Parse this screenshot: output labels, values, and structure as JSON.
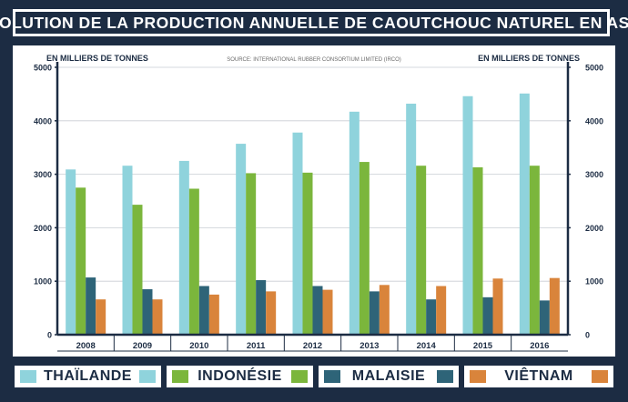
{
  "title": "ÉVOLUTION DE LA PRODUCTION ANNUELLE DE CAOUTCHOUC NATUREL EN ASIE",
  "unit_left": "EN MILLIERS DE TONNES",
  "unit_right": "EN MILLIERS DE TONNES",
  "source": "SOURCE: INTERNATIONAL RUBBER CONSORTIUM LIMITED (IRCO)",
  "colors": {
    "background": "#1c2c43",
    "thailande": "#8fd3dc",
    "indonesie": "#7bb63c",
    "malaisie": "#2e6478",
    "vietnam": "#d9843b"
  },
  "legend": [
    {
      "label": "THAÏLANDE",
      "color": "#8fd3dc"
    },
    {
      "label": "INDONÉSIE",
      "color": "#7bb63c"
    },
    {
      "label": "MALAISIE",
      "color": "#2e6478"
    },
    {
      "label": "VIÊTNAM",
      "color": "#d9843b"
    }
  ],
  "chart_data": {
    "type": "bar",
    "title": "ÉVOLUTION DE LA PRODUCTION ANNUELLE DE CAOUTCHOUC NATUREL EN ASIE",
    "ylabel": "EN MILLIERS DE TONNES",
    "ylim": [
      0,
      5000
    ],
    "yticks": [
      0,
      1000,
      2000,
      3000,
      4000,
      5000
    ],
    "grid": true,
    "categories": [
      "2008",
      "2009",
      "2010",
      "2011",
      "2012",
      "2013",
      "2014",
      "2015",
      "2016"
    ],
    "series": [
      {
        "name": "THAÏLANDE",
        "color": "#8fd3dc",
        "values": [
          3090,
          3160,
          3250,
          3570,
          3780,
          4170,
          4320,
          4460,
          4510
        ]
      },
      {
        "name": "INDONÉSIE",
        "color": "#7bb63c",
        "values": [
          2750,
          2430,
          2730,
          3020,
          3030,
          3230,
          3160,
          3130,
          3160
        ]
      },
      {
        "name": "MALAISIE",
        "color": "#2e6478",
        "values": [
          1070,
          850,
          910,
          1020,
          910,
          810,
          660,
          700,
          640
        ]
      },
      {
        "name": "VIÊTNAM",
        "color": "#d9843b",
        "values": [
          660,
          660,
          750,
          810,
          840,
          930,
          910,
          1050,
          1060
        ]
      }
    ]
  }
}
